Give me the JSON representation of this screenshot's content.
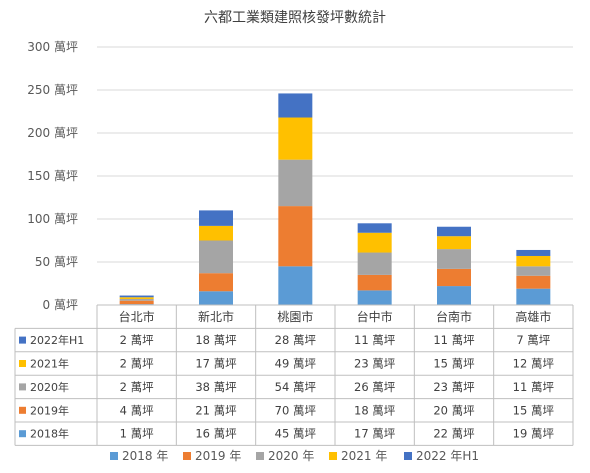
{
  "chart_data": {
    "type": "bar",
    "stacked": true,
    "title": "六都工業類建照核發坪數統計",
    "categories": [
      "台北市",
      "新北市",
      "桃園市",
      "台中市",
      "台南市",
      "高雄市"
    ],
    "ylim": [
      0,
      300
    ],
    "ytick_values": [
      0,
      50,
      100,
      150,
      200,
      250,
      300
    ],
    "ytick_labels": [
      "0 萬坪",
      "50 萬坪",
      "100 萬坪",
      "150 萬坪",
      "200 萬坪",
      "250 萬坪",
      "300 萬坪"
    ],
    "grid": true,
    "legend_position": "bottom",
    "series": [
      {
        "name": "2018 年",
        "table_label": "2018年",
        "color": "#5B9BD5",
        "values": [
          1,
          16,
          45,
          17,
          22,
          19
        ],
        "cells": [
          "1 萬坪",
          "16 萬坪",
          "45 萬坪",
          "17 萬坪",
          "22 萬坪",
          "19 萬坪"
        ]
      },
      {
        "name": "2019 年",
        "table_label": "2019年",
        "color": "#ED7D31",
        "values": [
          4,
          21,
          70,
          18,
          20,
          15
        ],
        "cells": [
          "4 萬坪",
          "21 萬坪",
          "70 萬坪",
          "18 萬坪",
          "20 萬坪",
          "15 萬坪"
        ]
      },
      {
        "name": "2020 年",
        "table_label": "2020年",
        "color": "#A5A5A5",
        "values": [
          2,
          38,
          54,
          26,
          23,
          11
        ],
        "cells": [
          "2 萬坪",
          "38 萬坪",
          "54 萬坪",
          "26 萬坪",
          "23 萬坪",
          "11 萬坪"
        ]
      },
      {
        "name": "2021 年",
        "table_label": "2021年",
        "color": "#FFC000",
        "values": [
          2,
          17,
          49,
          23,
          15,
          12
        ],
        "cells": [
          "2 萬坪",
          "17 萬坪",
          "49 萬坪",
          "23 萬坪",
          "15 萬坪",
          "12 萬坪"
        ]
      },
      {
        "name": "2022 年H1",
        "table_label": "2022年H1",
        "color": "#4472C4",
        "values": [
          2,
          18,
          28,
          11,
          11,
          7
        ],
        "cells": [
          "2 萬坪",
          "18 萬坪",
          "28 萬坪",
          "11 萬坪",
          "11 萬坪",
          "7 萬坪"
        ]
      }
    ]
  }
}
